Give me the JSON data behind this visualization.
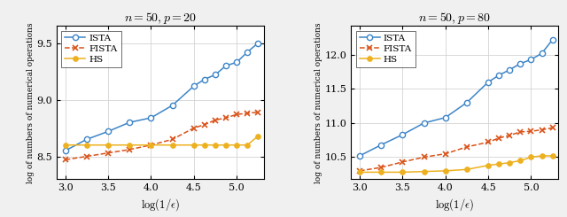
{
  "left": {
    "title": "$n = 50, p = 20$",
    "xlabel": "$\\mathrm{log}(1/\\epsilon)$",
    "ylabel": "log of numbers of numerical operations",
    "xlim": [
      2.9,
      5.32
    ],
    "ylim": [
      8.3,
      9.65
    ],
    "xticks": [
      3,
      3.5,
      4,
      4.5,
      5
    ],
    "yticks": [
      8.5,
      9.0,
      9.5
    ],
    "ISTA_x": [
      3.0,
      3.25,
      3.5,
      3.75,
      4.0,
      4.25,
      4.5,
      4.625,
      4.75,
      4.875,
      5.0,
      5.125,
      5.25
    ],
    "ISTA_y": [
      8.55,
      8.65,
      8.72,
      8.8,
      8.84,
      8.95,
      9.12,
      9.18,
      9.22,
      9.3,
      9.33,
      9.42,
      9.5
    ],
    "FISTA_x": [
      3.0,
      3.25,
      3.5,
      3.75,
      4.0,
      4.25,
      4.5,
      4.625,
      4.75,
      4.875,
      5.0,
      5.125,
      5.25
    ],
    "FISTA_y": [
      8.47,
      8.5,
      8.53,
      8.56,
      8.6,
      8.65,
      8.75,
      8.78,
      8.82,
      8.84,
      8.87,
      8.88,
      8.89
    ],
    "HS_x": [
      3.0,
      3.25,
      3.5,
      3.75,
      4.0,
      4.25,
      4.5,
      4.625,
      4.75,
      4.875,
      5.0,
      5.125,
      5.25
    ],
    "HS_y": [
      8.6,
      8.6,
      8.6,
      8.6,
      8.6,
      8.6,
      8.6,
      8.6,
      8.6,
      8.6,
      8.6,
      8.6,
      8.68
    ],
    "ISTA_color": "#3D85C8",
    "FISTA_color": "#D95319",
    "HS_color": "#EDB120"
  },
  "right": {
    "title": "$n = 50, p = 80$",
    "xlabel": "$\\mathrm{log}(1/\\epsilon)$",
    "ylabel": "log of numbers of numerical operations",
    "xlim": [
      2.9,
      5.32
    ],
    "ylim": [
      10.18,
      12.42
    ],
    "xticks": [
      3,
      3.5,
      4,
      4.5,
      5
    ],
    "yticks": [
      10.5,
      11.0,
      11.5,
      12.0
    ],
    "ISTA_x": [
      3.0,
      3.25,
      3.5,
      3.75,
      4.0,
      4.25,
      4.5,
      4.625,
      4.75,
      4.875,
      5.0,
      5.125,
      5.25
    ],
    "ISTA_y": [
      10.52,
      10.68,
      10.83,
      11.0,
      11.08,
      11.3,
      11.6,
      11.7,
      11.78,
      11.87,
      11.93,
      12.02,
      12.22
    ],
    "FISTA_x": [
      3.0,
      3.25,
      3.5,
      3.75,
      4.0,
      4.25,
      4.5,
      4.625,
      4.75,
      4.875,
      5.0,
      5.125,
      5.25
    ],
    "FISTA_y": [
      10.3,
      10.35,
      10.43,
      10.5,
      10.55,
      10.65,
      10.72,
      10.78,
      10.82,
      10.87,
      10.88,
      10.9,
      10.93
    ],
    "HS_x": [
      3.0,
      3.25,
      3.5,
      3.75,
      4.0,
      4.25,
      4.5,
      4.625,
      4.75,
      4.875,
      5.0,
      5.125,
      5.25
    ],
    "HS_y": [
      10.28,
      10.28,
      10.28,
      10.29,
      10.3,
      10.32,
      10.38,
      10.4,
      10.42,
      10.45,
      10.5,
      10.52,
      10.52
    ],
    "ISTA_color": "#3D85C8",
    "FISTA_color": "#D95319",
    "HS_color": "#EDB120"
  },
  "fig_facecolor": "#F0F0F0",
  "ax_facecolor": "#FFFFFF",
  "grid_color": "#D3D3D3"
}
